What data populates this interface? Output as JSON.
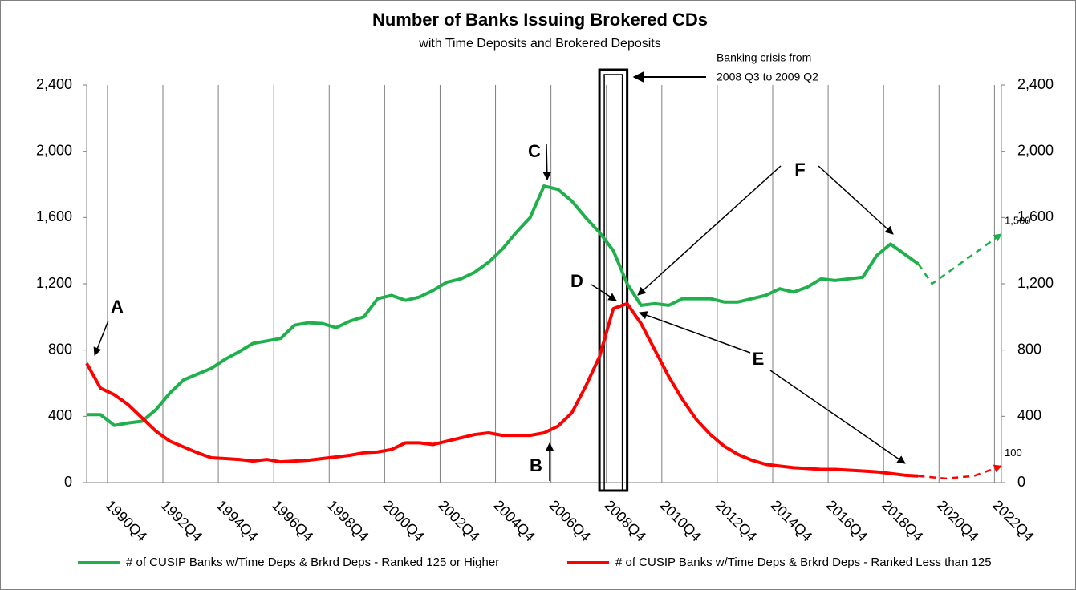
{
  "chart_data": {
    "type": "line",
    "title": "Number of Banks Issuing Brokered CDs",
    "subtitle": "with Time Deposits and Brokered Deposits",
    "x": [
      1990,
      1990.5,
      1991,
      1991.5,
      1992,
      1992.5,
      1993,
      1993.5,
      1994,
      1994.5,
      1995,
      1995.5,
      1996,
      1996.5,
      1997,
      1997.5,
      1998,
      1998.5,
      1999,
      1999.5,
      2000,
      2000.5,
      2001,
      2001.5,
      2002,
      2002.5,
      2003,
      2003.5,
      2004,
      2004.5,
      2005,
      2005.5,
      2006,
      2006.5,
      2007,
      2007.5,
      2008,
      2008.5,
      2009,
      2009.5,
      2010,
      2010.5,
      2011,
      2011.5,
      2012,
      2012.5,
      2013,
      2013.5,
      2014,
      2014.5,
      2015,
      2015.5,
      2016,
      2016.5,
      2017,
      2017.5,
      2018,
      2018.5,
      2019,
      2019.5,
      2020
    ],
    "series": [
      {
        "name": "# of CUSIP Banks w/Time Deps & Brkrd Deps - Ranked 125 or Higher",
        "color": "#1fb04c",
        "values": [
          410,
          410,
          345,
          360,
          370,
          440,
          540,
          620,
          655,
          690,
          745,
          790,
          840,
          855,
          870,
          950,
          965,
          960,
          935,
          975,
          1000,
          1110,
          1130,
          1100,
          1120,
          1160,
          1210,
          1230,
          1270,
          1330,
          1410,
          1510,
          1600,
          1790,
          1770,
          1700,
          1600,
          1510,
          1400,
          1200,
          1070,
          1080,
          1070,
          1110,
          1110,
          1110,
          1090,
          1090,
          1110,
          1130,
          1170,
          1150,
          1180,
          1230,
          1220,
          1230,
          1240,
          1370,
          1440,
          1380,
          1320
        ]
      },
      {
        "name": "# of CUSIP Banks w/Time Deps & Brkrd Deps -  Ranked Less than 125",
        "color": "#ff0000",
        "values": [
          720,
          570,
          530,
          470,
          390,
          310,
          250,
          215,
          180,
          150,
          145,
          140,
          130,
          140,
          125,
          130,
          135,
          145,
          155,
          165,
          180,
          185,
          200,
          240,
          240,
          230,
          250,
          270,
          290,
          300,
          285,
          285,
          285,
          300,
          340,
          420,
          580,
          760,
          1050,
          1080,
          960,
          800,
          640,
          500,
          380,
          290,
          220,
          170,
          135,
          110,
          100,
          90,
          85,
          80,
          80,
          75,
          70,
          65,
          55,
          45,
          40
        ]
      }
    ],
    "forecasts": [
      {
        "color": "#1fb04c",
        "x": [
          2020,
          2020.5,
          2023
        ],
        "values": [
          1320,
          1200,
          1500
        ],
        "value_labels": [
          null,
          null,
          "1,500"
        ]
      },
      {
        "color": "#ff0000",
        "x": [
          2020,
          2021,
          2022,
          2023
        ],
        "values": [
          40,
          25,
          40,
          100
        ],
        "value_labels": [
          null,
          null,
          null,
          "100"
        ]
      }
    ],
    "crisis_period": [
      2008.5,
      2009.5
    ],
    "crisis_note": [
      "Banking crisis from",
      "2008 Q3 to 2009 Q2"
    ],
    "annotations": [
      "A",
      "B",
      "C",
      "D",
      "E",
      "F"
    ],
    "xlim": [
      1990,
      2023
    ],
    "xticks": [
      {
        "value": 1990.75,
        "label": "1990Q4"
      },
      {
        "value": 1992.75,
        "label": "1992Q4"
      },
      {
        "value": 1994.75,
        "label": "1994Q4"
      },
      {
        "value": 1996.75,
        "label": "1996Q4"
      },
      {
        "value": 1998.75,
        "label": "1998Q4"
      },
      {
        "value": 2000.75,
        "label": "2000Q4"
      },
      {
        "value": 2002.75,
        "label": "2002Q4"
      },
      {
        "value": 2004.75,
        "label": "2004Q4"
      },
      {
        "value": 2006.75,
        "label": "2006Q4"
      },
      {
        "value": 2008.75,
        "label": "2008Q4"
      },
      {
        "value": 2010.75,
        "label": "2010Q4"
      },
      {
        "value": 2012.75,
        "label": "2012Q4"
      },
      {
        "value": 2014.75,
        "label": "2014Q4"
      },
      {
        "value": 2016.75,
        "label": "2016Q4"
      },
      {
        "value": 2018.75,
        "label": "2018Q4"
      },
      {
        "value": 2020.75,
        "label": "2020Q4"
      },
      {
        "value": 2022.75,
        "label": "2022Q4"
      }
    ],
    "ylim": [
      0,
      2400
    ],
    "yticks": [
      0,
      400,
      800,
      {
        "value": 1200,
        "label": "1,200"
      },
      {
        "value": 1600,
        "label": "1,600"
      },
      {
        "value": 2000,
        "label": "2,000"
      },
      {
        "value": 2400,
        "label": "2,400"
      }
    ],
    "y2lim": [
      0,
      2400
    ],
    "y2ticks": [
      0,
      400,
      800,
      {
        "value": 1200,
        "label": "1,200"
      },
      {
        "value": 1600,
        "label": "1,600"
      },
      {
        "value": 2000,
        "label": "2,000"
      },
      {
        "value": 2400,
        "label": "2,400"
      }
    ],
    "grid": true,
    "legend": "bottom"
  }
}
